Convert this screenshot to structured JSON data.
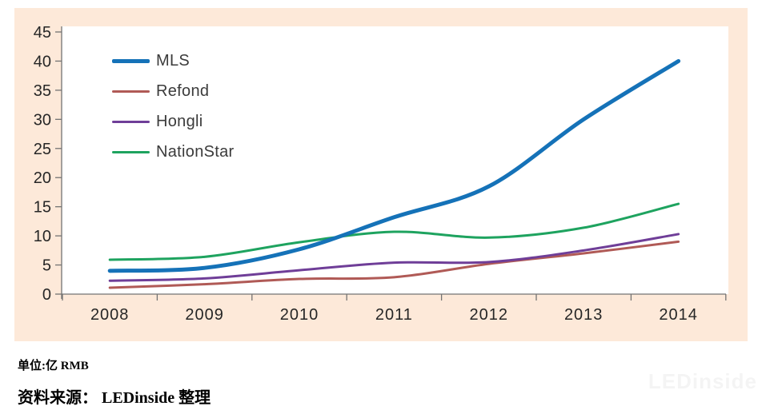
{
  "panel": {
    "background": "#fde9d9"
  },
  "captions": {
    "unit": "单位:亿 RMB",
    "source": "资料来源： LEDinside 整理"
  },
  "watermark": "LEDinside",
  "chart_data": {
    "type": "line",
    "title": "",
    "xlabel": "",
    "ylabel": "",
    "categories": [
      "2008",
      "2009",
      "2010",
      "2011",
      "2012",
      "2013",
      "2014"
    ],
    "series": [
      {
        "name": "MLS",
        "color": "#1572b8",
        "line_width": 5,
        "values": [
          4.0,
          4.5,
          7.7,
          13.2,
          18.5,
          30.0,
          40.0
        ]
      },
      {
        "name": "Refond",
        "color": "#b05a56",
        "line_width": 3,
        "values": [
          1.1,
          1.7,
          2.6,
          2.9,
          5.2,
          7.0,
          9.0
        ]
      },
      {
        "name": "Hongli",
        "color": "#6f3e98",
        "line_width": 3,
        "values": [
          2.3,
          2.7,
          4.1,
          5.4,
          5.5,
          7.5,
          10.3
        ]
      },
      {
        "name": "NationStar",
        "color": "#1ea35f",
        "line_width": 3,
        "values": [
          5.9,
          6.4,
          8.9,
          10.7,
          9.7,
          11.4,
          15.5
        ]
      }
    ],
    "ylim": [
      0,
      45
    ],
    "yticks": [
      0,
      5,
      10,
      15,
      20,
      25,
      30,
      35,
      40,
      45
    ],
    "grid": false,
    "smooth": true,
    "legend_position": "upper-left-inside",
    "axis_color": "#737373",
    "tick_label_color": "#262626",
    "plot_background": "#ffffff"
  }
}
